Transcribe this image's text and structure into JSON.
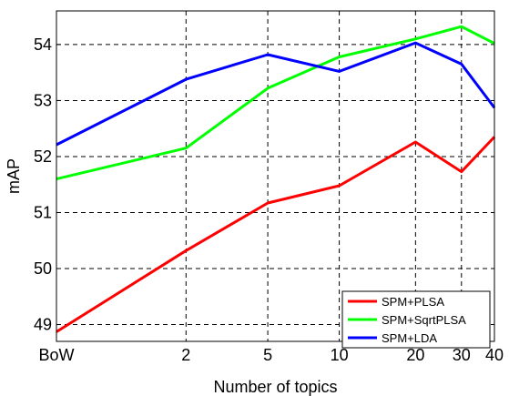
{
  "chart_data": {
    "type": "line",
    "title": "",
    "xlabel": "Number of topics",
    "ylabel": "mAP",
    "categories": [
      "BoW",
      "2",
      "5",
      "10",
      "20",
      "30",
      "40"
    ],
    "x_positions": [
      0,
      2,
      5,
      10,
      20,
      30,
      40
    ],
    "ylim": [
      48.7,
      54.6
    ],
    "yticks": [
      "49",
      "50",
      "51",
      "52",
      "53",
      "54"
    ],
    "grid": true,
    "legend_position": "bottom-right",
    "series": [
      {
        "name": "SPM+PLSA",
        "color": "#ff0000",
        "values": [
          48.87,
          50.32,
          51.17,
          51.48,
          52.26,
          51.73,
          52.35
        ]
      },
      {
        "name": "SPM+SqrtPLSA",
        "color": "#00ff00",
        "values": [
          51.6,
          52.15,
          53.22,
          53.78,
          54.1,
          54.32,
          54.02
        ]
      },
      {
        "name": "SPM+LDA",
        "color": "#0000ff",
        "values": [
          52.21,
          53.38,
          53.82,
          53.52,
          54.03,
          53.65,
          52.87
        ]
      }
    ]
  }
}
